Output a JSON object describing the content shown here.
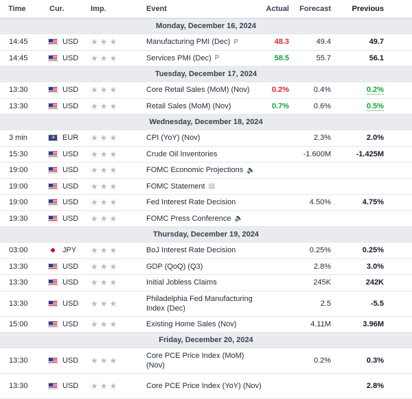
{
  "header": {
    "time": "Time",
    "currency": "Cur.",
    "importance": "Imp.",
    "event": "Event",
    "actual": "Actual",
    "forecast": "Forecast",
    "previous": "Previous"
  },
  "colors": {
    "positive": "#12a63a",
    "negative": "#e02424",
    "day_bg": "#e9ebef"
  },
  "days": [
    {
      "label": "Monday, December 16, 2024",
      "events": [
        {
          "time": "14:45",
          "flag": "us",
          "currency": "USD",
          "name": "Manufacturing PMI (Dec)",
          "icon": "preliminary-icon",
          "actual": "48.3",
          "actual_color": "red",
          "forecast": "49.4",
          "previous": "49.7"
        },
        {
          "time": "14:45",
          "flag": "us",
          "currency": "USD",
          "name": "Services PMI (Dec)",
          "icon": "preliminary-icon",
          "actual": "58.5",
          "actual_color": "green",
          "forecast": "55.7",
          "previous": "56.1"
        }
      ]
    },
    {
      "label": "Tuesday, December 17, 2024",
      "events": [
        {
          "time": "13:30",
          "flag": "us",
          "currency": "USD",
          "name": "Core Retail Sales (MoM) (Nov)",
          "icon": "",
          "actual": "0.2%",
          "actual_color": "red",
          "forecast": "0.4%",
          "previous": "0.2%",
          "previous_color": "green"
        },
        {
          "time": "13:30",
          "flag": "us",
          "currency": "USD",
          "name": "Retail Sales (MoM) (Nov)",
          "icon": "",
          "actual": "0.7%",
          "actual_color": "green",
          "forecast": "0.6%",
          "previous": "0.5%",
          "previous_color": "green"
        }
      ]
    },
    {
      "label": "Wednesday, December 18, 2024",
      "events": [
        {
          "time": "3 min",
          "flag": "eu",
          "currency": "EUR",
          "name": "CPI (YoY) (Nov)",
          "icon": "",
          "actual": "",
          "forecast": "2.3%",
          "previous": "2.0%"
        },
        {
          "time": "15:30",
          "flag": "us",
          "currency": "USD",
          "name": "Crude Oil Inventories",
          "icon": "",
          "actual": "",
          "forecast": "-1.600M",
          "previous": "-1.425M"
        },
        {
          "time": "19:00",
          "flag": "us",
          "currency": "USD",
          "name": "FOMC Economic Projections",
          "icon": "speaker-icon",
          "actual": "",
          "forecast": "",
          "previous": ""
        },
        {
          "time": "19:00",
          "flag": "us",
          "currency": "USD",
          "name": "FOMC Statement",
          "icon": "document-icon",
          "actual": "",
          "forecast": "",
          "previous": ""
        },
        {
          "time": "19:00",
          "flag": "us",
          "currency": "USD",
          "name": "Fed Interest Rate Decision",
          "icon": "",
          "actual": "",
          "forecast": "4.50%",
          "previous": "4.75%"
        },
        {
          "time": "19:30",
          "flag": "us",
          "currency": "USD",
          "name": "FOMC Press Conference",
          "icon": "speaker-icon",
          "actual": "",
          "forecast": "",
          "previous": ""
        }
      ]
    },
    {
      "label": "Thursday, December 19, 2024",
      "events": [
        {
          "time": "03:00",
          "flag": "jp",
          "currency": "JPY",
          "name": "BoJ Interest Rate Decision",
          "icon": "",
          "actual": "",
          "forecast": "0.25%",
          "previous": "0.25%"
        },
        {
          "time": "13:30",
          "flag": "us",
          "currency": "USD",
          "name": "GDP (QoQ) (Q3)",
          "icon": "",
          "actual": "",
          "forecast": "2.8%",
          "previous": "3.0%"
        },
        {
          "time": "13:30",
          "flag": "us",
          "currency": "USD",
          "name": "Initial Jobless Claims",
          "icon": "",
          "actual": "",
          "forecast": "245K",
          "previous": "242K"
        },
        {
          "time": "13:30",
          "flag": "us",
          "currency": "USD",
          "name": "Philadelphia Fed Manufacturing Index (Dec)",
          "icon": "",
          "tall": true,
          "actual": "",
          "forecast": "2.5",
          "previous": "-5.5"
        },
        {
          "time": "15:00",
          "flag": "us",
          "currency": "USD",
          "name": "Existing Home Sales (Nov)",
          "icon": "",
          "actual": "",
          "forecast": "4.11M",
          "previous": "3.96M"
        }
      ]
    },
    {
      "label": "Friday, December 20, 2024",
      "events": [
        {
          "time": "13:30",
          "flag": "us",
          "currency": "USD",
          "name": "Core PCE Price Index (MoM) (Nov)",
          "icon": "",
          "tall": true,
          "actual": "",
          "forecast": "0.2%",
          "previous": "0.3%"
        },
        {
          "time": "13:30",
          "flag": "us",
          "currency": "USD",
          "name": "Core PCE Price Index (YoY) (Nov)",
          "icon": "",
          "tall": true,
          "actual": "",
          "forecast": "",
          "previous": "2.8%"
        }
      ]
    }
  ]
}
